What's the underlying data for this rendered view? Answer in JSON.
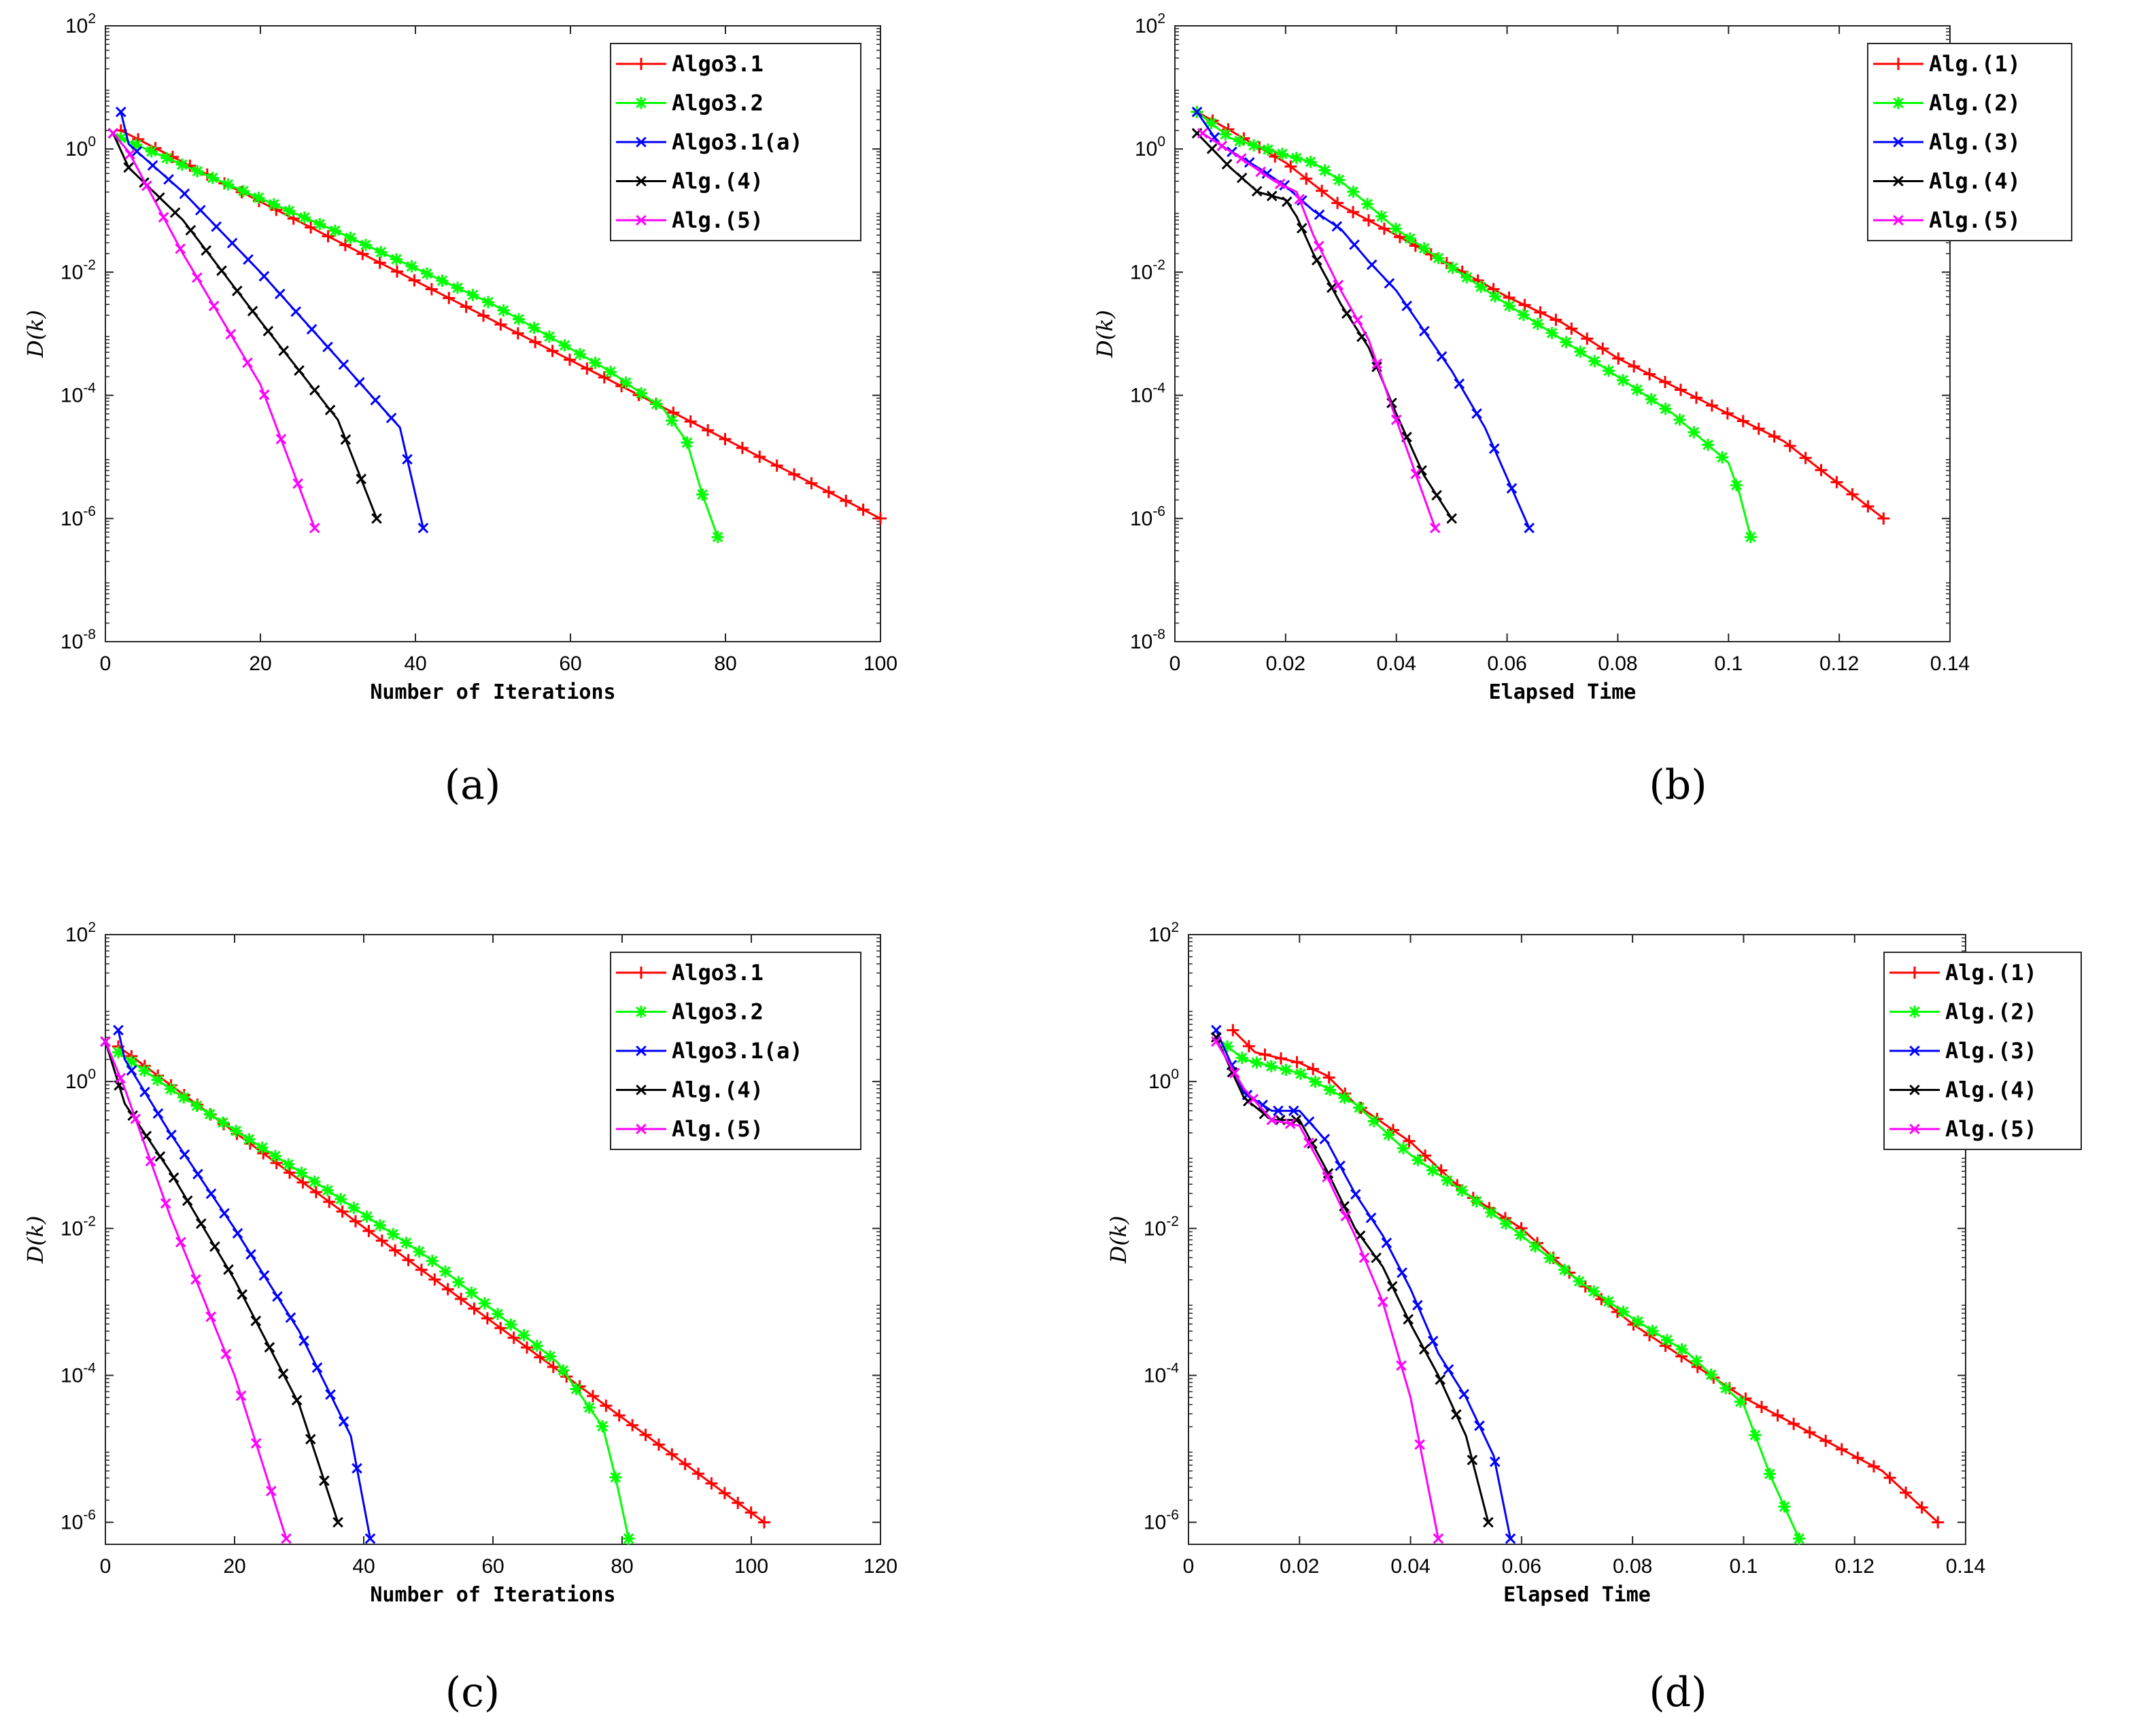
{
  "chart_data": [
    {
      "id": "a",
      "type": "line",
      "caption": "(a)",
      "xlabel": "Number of Iterations",
      "ylabel": "D(k)",
      "xlim": [
        0,
        100
      ],
      "xticks": [
        0,
        20,
        40,
        60,
        80,
        100
      ],
      "yscale": "log",
      "ylim_exp": [
        -8,
        2
      ],
      "yticks_exp": [
        -8,
        -6,
        -4,
        -2,
        0,
        2
      ],
      "legend": "top-right",
      "series": [
        {
          "name": "Algo3.1",
          "color": "#ff0000",
          "marker": "plus",
          "x": [
            2,
            100
          ],
          "y": [
            2.0,
            1e-06
          ],
          "n_markers": 45
        },
        {
          "name": "Algo3.2",
          "color": "#00ff00",
          "marker": "star",
          "x": [
            2,
            10,
            30,
            50,
            65,
            72,
            75,
            77,
            79
          ],
          "y": [
            1.5,
            0.55,
            0.045,
            0.003,
            0.00025,
            6e-05,
            1.8e-05,
            2.5e-06,
            5e-07
          ],
          "n_markers": 40
        },
        {
          "name": "Algo3.1(a)",
          "color": "#0000ff",
          "marker": "x",
          "x": [
            2,
            3,
            10,
            20,
            30,
            38,
            41
          ],
          "y": [
            4.0,
            1.2,
            0.2,
            0.01,
            0.0004,
            3e-05,
            7e-07
          ],
          "n_markers": 20
        },
        {
          "name": "Alg.(4)",
          "color": "#000000",
          "marker": "x",
          "x": [
            1,
            3,
            10,
            20,
            30,
            35
          ],
          "y": [
            1.8,
            0.5,
            0.07,
            0.0016,
            4e-05,
            1e-06
          ],
          "n_markers": 18
        },
        {
          "name": "Alg.(5)",
          "color": "#ff00ff",
          "marker": "x",
          "x": [
            1,
            3,
            10,
            20,
            27
          ],
          "y": [
            1.8,
            0.9,
            0.02,
            0.00015,
            7e-07
          ],
          "n_markers": 13
        }
      ]
    },
    {
      "id": "b",
      "type": "line",
      "caption": "(b)",
      "xlabel": "Elapsed Time",
      "ylabel": "D(k)",
      "xlim": [
        0,
        0.14
      ],
      "xticks": [
        0,
        0.02,
        0.04,
        0.06,
        0.08,
        0.1,
        0.12,
        0.14
      ],
      "yscale": "log",
      "ylim_exp": [
        -8,
        2
      ],
      "yticks_exp": [
        -8,
        -6,
        -4,
        -2,
        0,
        2
      ],
      "legend": "top-right",
      "series": [
        {
          "name": "Alg.(1)",
          "color": "#ff0000",
          "marker": "plus",
          "x": [
            0.004,
            0.01,
            0.02,
            0.03,
            0.04,
            0.06,
            0.07,
            0.08,
            0.1,
            0.11,
            0.128
          ],
          "y": [
            4.0,
            2.0,
            0.6,
            0.12,
            0.04,
            0.004,
            0.0015,
            0.0004,
            5e-05,
            1.8e-05,
            1e-06
          ],
          "n_markers": 45
        },
        {
          "name": "Alg.(2)",
          "color": "#00ff00",
          "marker": "star",
          "x": [
            0.004,
            0.01,
            0.02,
            0.025,
            0.03,
            0.04,
            0.05,
            0.06,
            0.07,
            0.08,
            0.09,
            0.1,
            0.102,
            0.104
          ],
          "y": [
            4.0,
            1.5,
            0.8,
            0.6,
            0.3,
            0.05,
            0.012,
            0.003,
            0.0008,
            0.0002,
            5e-05,
            8e-06,
            2.5e-06,
            5e-07
          ],
          "n_markers": 40
        },
        {
          "name": "Alg.(3)",
          "color": "#0000ff",
          "marker": "x",
          "x": [
            0.004,
            0.008,
            0.015,
            0.02,
            0.025,
            0.03,
            0.035,
            0.04,
            0.05,
            0.056,
            0.064
          ],
          "y": [
            4.0,
            1.2,
            0.5,
            0.25,
            0.1,
            0.05,
            0.015,
            0.005,
            0.00025,
            3e-05,
            7e-07
          ],
          "n_markers": 20
        },
        {
          "name": "Alg.(4)",
          "color": "#000000",
          "marker": "x",
          "x": [
            0.004,
            0.01,
            0.015,
            0.02,
            0.022,
            0.025,
            0.03,
            0.035,
            0.04,
            0.045,
            0.05
          ],
          "y": [
            1.8,
            0.5,
            0.2,
            0.15,
            0.08,
            0.02,
            0.003,
            0.0006,
            5e-05,
            5e-06,
            1e-06
          ],
          "n_markers": 18
        },
        {
          "name": "Alg.(5)",
          "color": "#ff00ff",
          "marker": "x",
          "x": [
            0.005,
            0.012,
            0.018,
            0.022,
            0.025,
            0.03,
            0.035,
            0.04,
            0.047
          ],
          "y": [
            1.8,
            0.7,
            0.3,
            0.2,
            0.04,
            0.005,
            0.0008,
            4e-05,
            7e-07
          ],
          "n_markers": 13
        }
      ]
    },
    {
      "id": "c",
      "type": "line",
      "caption": "(c)",
      "xlabel": "Number of Iterations",
      "ylabel": "D(k)",
      "xlim": [
        0,
        120
      ],
      "xticks": [
        0,
        20,
        40,
        60,
        80,
        100,
        120
      ],
      "yscale": "log",
      "ylim_exp": [
        -6.3,
        2
      ],
      "yticks_exp": [
        -6,
        -4,
        -2,
        0,
        2
      ],
      "legend": "top-right",
      "series": [
        {
          "name": "Algo3.1",
          "color": "#ff0000",
          "marker": "plus",
          "x": [
            2,
            102
          ],
          "y": [
            3.0,
            1e-06
          ],
          "n_markers": 50
        },
        {
          "name": "Algo3.2",
          "color": "#00ff00",
          "marker": "star",
          "x": [
            2,
            10,
            30,
            50,
            70,
            77,
            79,
            81
          ],
          "y": [
            2.5,
            0.8,
            0.06,
            0.004,
            0.00015,
            2e-05,
            4e-06,
            6e-07
          ],
          "n_markers": 40
        },
        {
          "name": "Algo3.1(a)",
          "color": "#0000ff",
          "marker": "x",
          "x": [
            2,
            3,
            10,
            20,
            30,
            38,
            41
          ],
          "y": [
            5.0,
            2.0,
            0.2,
            0.01,
            0.0004,
            1.5e-05,
            6e-07
          ],
          "n_markers": 20
        },
        {
          "name": "Alg.(4)",
          "color": "#000000",
          "marker": "x",
          "x": [
            0,
            3,
            10,
            20,
            30,
            36
          ],
          "y": [
            3.5,
            0.5,
            0.06,
            0.002,
            4e-05,
            1e-06
          ],
          "n_markers": 18
        },
        {
          "name": "Alg.(5)",
          "color": "#ff00ff",
          "marker": "x",
          "x": [
            0,
            3,
            10,
            20,
            28
          ],
          "y": [
            3.5,
            0.8,
            0.015,
            0.0001,
            6e-07
          ],
          "n_markers": 13
        }
      ]
    },
    {
      "id": "d",
      "type": "line",
      "caption": "(d)",
      "xlabel": "Elapsed Time",
      "ylabel": "D(k)",
      "xlim": [
        0,
        0.14
      ],
      "xticks": [
        0,
        0.02,
        0.04,
        0.06,
        0.08,
        0.1,
        0.12,
        0.14
      ],
      "yscale": "log",
      "ylim_exp": [
        -6.3,
        2
      ],
      "yticks_exp": [
        -6,
        -4,
        -2,
        0,
        2
      ],
      "legend": "top-right",
      "series": [
        {
          "name": "Alg.(1)",
          "color": "#ff0000",
          "marker": "plus",
          "x": [
            0.008,
            0.012,
            0.02,
            0.025,
            0.03,
            0.04,
            0.05,
            0.06,
            0.07,
            0.08,
            0.1,
            0.11,
            0.125,
            0.135
          ],
          "y": [
            5.0,
            2.5,
            1.8,
            1.2,
            0.5,
            0.15,
            0.03,
            0.01,
            0.002,
            0.0005,
            5e-05,
            2e-05,
            5e-06,
            1e-06
          ],
          "n_markers": 45
        },
        {
          "name": "Alg.(2)",
          "color": "#00ff00",
          "marker": "star",
          "x": [
            0.007,
            0.01,
            0.02,
            0.03,
            0.04,
            0.05,
            0.06,
            0.07,
            0.08,
            0.09,
            0.1,
            0.105,
            0.11
          ],
          "y": [
            3.0,
            2.0,
            1.3,
            0.5,
            0.1,
            0.03,
            0.008,
            0.002,
            0.0006,
            0.0002,
            4e-05,
            4e-06,
            6e-07
          ],
          "n_markers": 40
        },
        {
          "name": "Alg.(3)",
          "color": "#0000ff",
          "marker": "x",
          "x": [
            0.005,
            0.01,
            0.015,
            0.02,
            0.025,
            0.03,
            0.035,
            0.04,
            0.045,
            0.05,
            0.055,
            0.058
          ],
          "y": [
            5.0,
            0.7,
            0.4,
            0.4,
            0.15,
            0.03,
            0.008,
            0.0015,
            0.0002,
            5e-05,
            8e-06,
            6e-07
          ],
          "n_markers": 20
        },
        {
          "name": "Alg.(4)",
          "color": "#000000",
          "marker": "x",
          "x": [
            0.005,
            0.01,
            0.015,
            0.02,
            0.025,
            0.03,
            0.035,
            0.04,
            0.045,
            0.05,
            0.054
          ],
          "y": [
            4.0,
            0.6,
            0.3,
            0.3,
            0.06,
            0.01,
            0.003,
            0.0005,
            0.0001,
            1.5e-05,
            1e-06
          ],
          "n_markers": 18
        },
        {
          "name": "Alg.(5)",
          "color": "#ff00ff",
          "marker": "x",
          "x": [
            0.005,
            0.01,
            0.015,
            0.02,
            0.025,
            0.03,
            0.035,
            0.04,
            0.045
          ],
          "y": [
            3.5,
            0.8,
            0.3,
            0.25,
            0.05,
            0.008,
            0.001,
            5e-05,
            6e-07
          ],
          "n_markers": 13
        }
      ]
    }
  ]
}
